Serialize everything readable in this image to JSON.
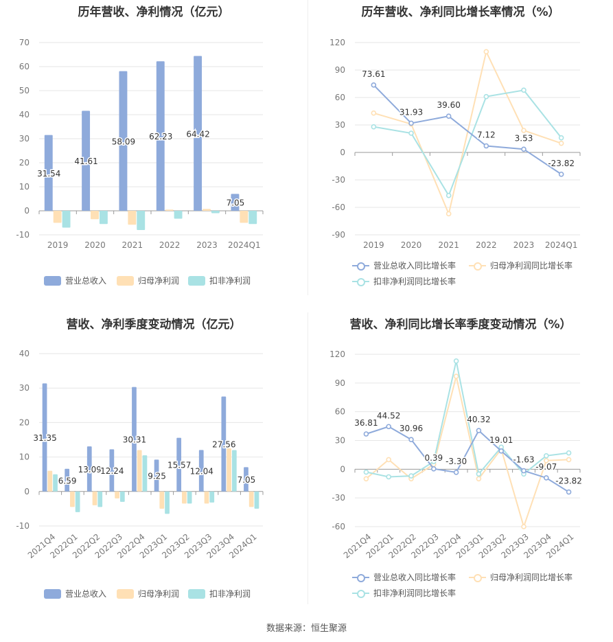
{
  "source": "数据来源：恒生聚源",
  "legend_bar": [
    "营业总收入",
    "归母净利润",
    "扣非净利润"
  ],
  "legend_line": [
    "营业总收入同比增长率",
    "归母净利润同比增长率",
    "扣非净利润同比增长率"
  ],
  "colors": {
    "revenue": "#8eaadb",
    "net": "#ffe0b5",
    "deducted": "#a9e2e4"
  },
  "chart_data": [
    {
      "id": "c1",
      "type": "bar",
      "title": "历年营收、净利情况（亿元）",
      "categories": [
        "2019",
        "2020",
        "2021",
        "2022",
        "2023",
        "2024Q1"
      ],
      "ylim": [
        -10,
        70
      ],
      "yticks": [
        -10,
        0,
        10,
        20,
        30,
        40,
        50,
        60,
        70
      ],
      "grid": true,
      "legend": "bottom",
      "series": [
        {
          "name": "营业总收入",
          "values": [
            31.54,
            41.61,
            58.09,
            62.23,
            64.42,
            7.05
          ],
          "labels": [
            "31.54",
            "41.61",
            "58.09",
            "62.23",
            "64.42",
            "7.05"
          ]
        },
        {
          "name": "归母净利润",
          "values": [
            -5,
            -3.5,
            -5.8,
            0.5,
            0.8,
            -5
          ]
        },
        {
          "name": "扣非净利润",
          "values": [
            -7,
            -5.5,
            -8,
            -3.3,
            -1,
            -5.5
          ]
        }
      ]
    },
    {
      "id": "c2",
      "type": "line",
      "title": "历年营收、净利同比增长率情况（%）",
      "categories": [
        "2019",
        "2020",
        "2021",
        "2022",
        "2023",
        "2024Q1"
      ],
      "ylim": [
        -90,
        120
      ],
      "yticks": [
        -90,
        -60,
        -30,
        0,
        30,
        60,
        90,
        120
      ],
      "grid": true,
      "legend": "bottom",
      "series": [
        {
          "name": "营业总收入同比增长率",
          "values": [
            73.61,
            31.93,
            39.6,
            7.12,
            3.53,
            -23.82
          ],
          "labels": [
            "73.61",
            "31.93",
            "39.60",
            "7.12",
            "3.53",
            "-23.82"
          ]
        },
        {
          "name": "归母净利润同比增长率",
          "values": [
            43,
            31,
            -67,
            110,
            24,
            10
          ]
        },
        {
          "name": "扣非净利润同比增长率",
          "values": [
            28,
            21,
            -47,
            61,
            68,
            16
          ]
        }
      ]
    },
    {
      "id": "c3",
      "type": "bar",
      "title": "营收、净利季度变动情况（亿元）",
      "categories": [
        "2021Q4",
        "2022Q1",
        "2022Q2",
        "2022Q3",
        "2022Q4",
        "2023Q1",
        "2023Q2",
        "2023Q3",
        "2023Q4",
        "2024Q1"
      ],
      "ylim": [
        -10,
        40
      ],
      "yticks": [
        -10,
        0,
        10,
        20,
        30,
        40
      ],
      "grid": true,
      "legend": "bottom",
      "series": [
        {
          "name": "营业总收入",
          "values": [
            31.35,
            6.59,
            13.09,
            12.24,
            30.31,
            9.25,
            15.57,
            12.04,
            27.56,
            7.05
          ],
          "labels": [
            "31.35",
            "6.59",
            "13.09",
            "12.24",
            "30.31",
            "9.25",
            "15.57",
            "12.04",
            "27.56",
            "7.05"
          ]
        },
        {
          "name": "归母净利润",
          "values": [
            6,
            -4.5,
            -4,
            -2,
            12,
            -5,
            -3.5,
            -3.5,
            12.5,
            -4.5
          ]
        },
        {
          "name": "扣非净利润",
          "values": [
            5,
            -6,
            -4.5,
            -3,
            10.5,
            -6.5,
            -3.5,
            -3.2,
            12,
            -5
          ]
        }
      ]
    },
    {
      "id": "c4",
      "type": "line",
      "title": "营收、净利同比增长率季度变动情况（%）",
      "categories": [
        "2021Q4",
        "2022Q1",
        "2022Q2",
        "2022Q3",
        "2022Q4",
        "2023Q1",
        "2023Q2",
        "2023Q3",
        "2023Q4",
        "2024Q1"
      ],
      "ylim": [
        -60,
        120
      ],
      "yticks": [
        -60,
        -30,
        0,
        30,
        60,
        90,
        120
      ],
      "grid": true,
      "legend": "bottom",
      "series": [
        {
          "name": "营业总收入同比增长率",
          "values": [
            36.81,
            44.52,
            30.96,
            0.39,
            -3.3,
            40.32,
            19.01,
            -1.63,
            -9.07,
            -23.82
          ],
          "labels": [
            "36.81",
            "44.52",
            "30.96",
            "0.39",
            "-3.30",
            "40.32",
            "19.01",
            "-1.63",
            "-9.07",
            "-23.82"
          ]
        },
        {
          "name": "归母净利润同比增长率",
          "values": [
            -10,
            10,
            -10,
            5,
            97,
            -10,
            21,
            -60,
            9,
            10
          ]
        },
        {
          "name": "扣非净利润同比增长率",
          "values": [
            -3,
            -8,
            -7,
            8,
            113,
            -5,
            23,
            -5,
            14,
            17
          ]
        }
      ]
    }
  ]
}
